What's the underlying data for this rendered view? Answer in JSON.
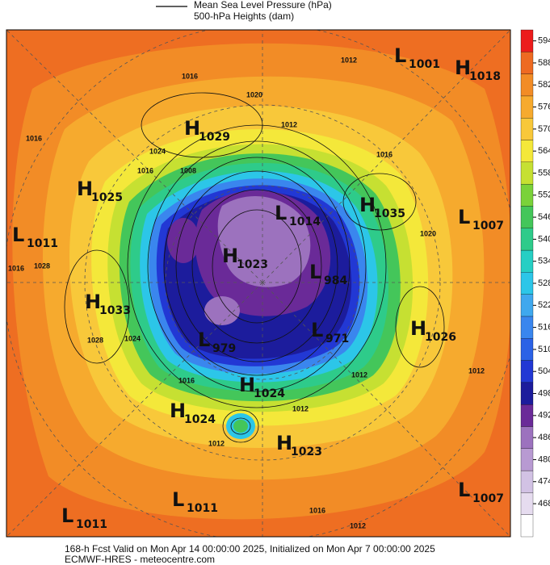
{
  "legend": {
    "items": [
      "Mean Sea Level Pressure (hPa)",
      "500-hPa Heights (dam)"
    ]
  },
  "colorbar": {
    "ticks": [
      594,
      588,
      582,
      576,
      570,
      564,
      558,
      552,
      546,
      540,
      534,
      528,
      522,
      516,
      510,
      504,
      498,
      492,
      486,
      480,
      474,
      468
    ],
    "colors": [
      "#ffffff",
      "#e6dcef",
      "#d2c2e4",
      "#b89ad2",
      "#9c72be",
      "#6a2a98",
      "#1c1c9c",
      "#2238d4",
      "#2b62e6",
      "#3a86ee",
      "#3fa8ee",
      "#2cc6e8",
      "#26cfc4",
      "#2ecb8a",
      "#44c65a",
      "#7ad23a",
      "#c6e032",
      "#f4e83a",
      "#f8c83a",
      "#f6aa2e",
      "#f28c26",
      "#ee6a22",
      "#ec1c1c"
    ]
  },
  "centers": [
    {
      "letter": "L",
      "value": 1001
    },
    {
      "letter": "H",
      "value": 1018
    },
    {
      "letter": "H",
      "value": 1029
    },
    {
      "letter": "H",
      "value": 1025
    },
    {
      "letter": "H",
      "value": 1035
    },
    {
      "letter": "L",
      "value": 1007
    },
    {
      "letter": "L",
      "value": 1011
    },
    {
      "letter": "L",
      "value": 1014
    },
    {
      "letter": "H",
      "value": 1023
    },
    {
      "letter": "L",
      "value": 984
    },
    {
      "letter": "H",
      "value": 1033
    },
    {
      "letter": "H",
      "value": 1026
    },
    {
      "letter": "L",
      "value": 971
    },
    {
      "letter": "L",
      "value": 979
    },
    {
      "letter": "H",
      "value": 1024
    },
    {
      "letter": "H",
      "value": 1024
    },
    {
      "letter": "H",
      "value": 1023
    },
    {
      "letter": "L",
      "value": 1011
    },
    {
      "letter": "L",
      "value": 1007
    },
    {
      "letter": "L",
      "value": 1011
    }
  ],
  "contour_labels": [
    "1016",
    "1020",
    "1024",
    "1016",
    "1008",
    "1012",
    "1016",
    "1012",
    "1016",
    "1028",
    "1016",
    "1028",
    "1024",
    "1012",
    "1012",
    "1016",
    "1012",
    "1016",
    "1012",
    "1020",
    "1012"
  ],
  "footer": {
    "line1": "168-h Fcst Valid on Mon Apr 14 00:00:00 2025, Initialized on Mon Apr  7 00:00:00 2025",
    "line2": "ECMWF-HRES  - meteocentre.com"
  }
}
